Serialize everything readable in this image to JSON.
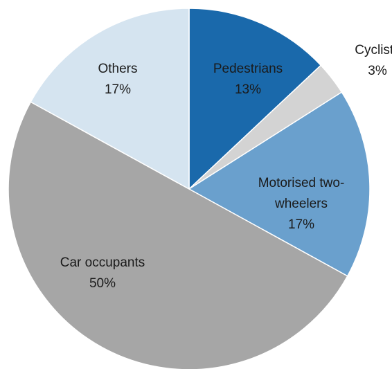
{
  "chart_data": {
    "type": "pie",
    "categories": [
      "Pedestrians",
      "Cyclists",
      "Motorised two-wheelers",
      "Car occupants",
      "Others"
    ],
    "values": [
      13,
      3,
      17,
      50,
      17
    ],
    "value_labels": [
      "13%",
      "3%",
      "17%",
      "50%",
      "17%"
    ],
    "colors": [
      "#1a69ab",
      "#d3d3d3",
      "#6aa0cd",
      "#a6a6a6",
      "#d5e4f0"
    ]
  }
}
